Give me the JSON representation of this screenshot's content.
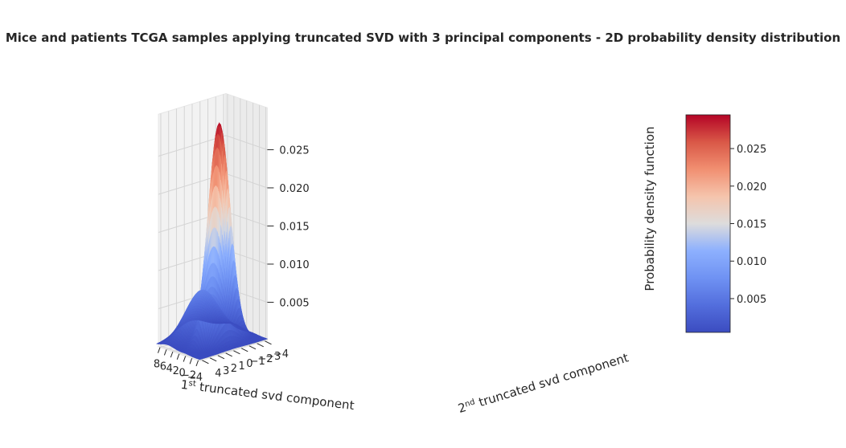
{
  "chart_data": {
    "type": "surface3d",
    "title": "Mice and patients TCGA samples applying truncated SVD with 3 principal components - 2D probability density distribution",
    "x_axis": {
      "label_base": "1",
      "label_sup": "st",
      "label_rest": " truncated svd component",
      "ticks": [
        8,
        6,
        4,
        2,
        0,
        -2,
        -4
      ],
      "tick_labels": [
        "8",
        "6",
        "4",
        "2",
        "0",
        "−2",
        "−4"
      ],
      "range": [
        -4.5,
        9
      ]
    },
    "y_axis": {
      "label_base": "2",
      "label_sup": "nd",
      "label_rest": " truncated svd component",
      "ticks": [
        4,
        3,
        2,
        1,
        0,
        -1,
        -2,
        -3,
        -4
      ],
      "tick_labels": [
        "4",
        "3",
        "2",
        "1",
        "0",
        "−1",
        "−2",
        "−3",
        "−4"
      ],
      "range": [
        -4.3,
        4.3
      ]
    },
    "z_axis": {
      "label": "Probability density function",
      "ticks": [
        0.005,
        0.01,
        0.015,
        0.02,
        0.025
      ],
      "tick_labels": [
        "0.005",
        "0.010",
        "0.015",
        "0.020",
        "0.025"
      ],
      "range": [
        0,
        0.029
      ]
    },
    "surface": {
      "description_values": "sum of 2D Gaussian components (density peak ~0.029 near (0, 0))",
      "components": [
        {
          "weight": 0.82,
          "mx": 0.0,
          "my": 0.0,
          "sx": 1.3,
          "sy": 1.3
        },
        {
          "weight": 0.18,
          "mx": 5.5,
          "my": 0.0,
          "sx": 2.2,
          "sy": 1.9
        }
      ],
      "peak": 0.029
    },
    "colormap": "coolwarm",
    "colorbar": {
      "ticks": [
        0.005,
        0.01,
        0.015,
        0.02,
        0.025
      ],
      "tick_labels": [
        "0.005",
        "0.010",
        "0.015",
        "0.020",
        "0.025"
      ],
      "range": [
        0.0005,
        0.0295
      ]
    },
    "colors": {
      "low": "#3b4cc0",
      "mid": "#dddcdc",
      "high": "#b40426",
      "pane": "#f2f2f2",
      "grid": "#d0d0d0"
    },
    "grid": true
  }
}
